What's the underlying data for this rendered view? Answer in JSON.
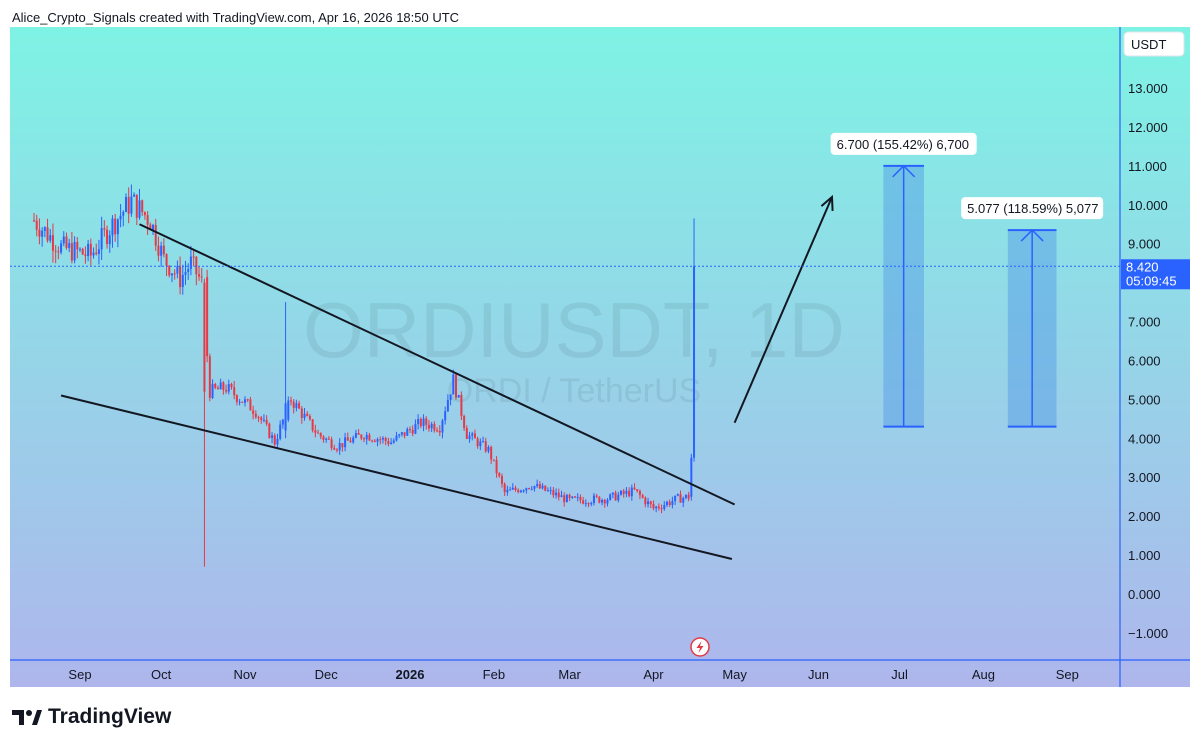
{
  "header": {
    "attribution": "Alice_Crypto_Signals created with TradingView.com, Apr 16, 2026 18:50 UTC"
  },
  "watermark": {
    "symbol": "ORDIUSDT, 1D",
    "description": "ORDI / TetherUS"
  },
  "footer": {
    "brand": "TradingView",
    "logo_icon": "tradingview-logo-icon"
  },
  "colors": {
    "bg_top": "#7ef3e4",
    "bg_bottom": "#aeb6ec",
    "axis_line": "#2962ff",
    "up_candle": "#2962ff",
    "down_candle": "#e53946",
    "trendline": "#131722",
    "target_box": "#4f96e6",
    "price_label_bg": "#2962ff"
  },
  "price_axis": {
    "currency": "USDT",
    "current_price": "8.420",
    "countdown": "05:09:45"
  },
  "annotations": {
    "target1": "6.700 (155.42%) 6,700",
    "target2": "5.077 (118.59%) 5,077"
  },
  "chart_data": {
    "type": "candlestick",
    "title": "ORDIUSDT, 1D",
    "subtitle": "ORDI / TetherUS",
    "ylim": [
      -1.7,
      14.0
    ],
    "yticks": [
      -1,
      0,
      1,
      2,
      3,
      4,
      5,
      6,
      7,
      8,
      9,
      10,
      11,
      12,
      13
    ],
    "ytick_labels": [
      "−1.000",
      "0.000",
      "1.000",
      "2.000",
      "3.000",
      "4.000",
      "5.000",
      "6.000",
      "7.000",
      "8.000",
      "9.000",
      "10.000",
      "11.000",
      "12.000",
      "13.000"
    ],
    "xticks": [
      "Sep",
      "Oct",
      "Nov",
      "Dec",
      "2026",
      "Feb",
      "Mar",
      "Apr",
      "May",
      "Jun",
      "Jul",
      "Aug",
      "Sep"
    ],
    "x_start": "2025-08-15",
    "x_end": "2026-09-30",
    "xtick_dates": [
      "2025-09-01",
      "2025-10-01",
      "2025-11-01",
      "2025-12-01",
      "2026-01-01",
      "2026-02-01",
      "2026-03-01",
      "2026-04-01",
      "2026-05-01",
      "2026-06-01",
      "2026-07-01",
      "2026-08-01",
      "2026-09-01"
    ],
    "anchors": [
      {
        "date": "2025-08-15",
        "price": 9.6
      },
      {
        "date": "2025-08-25",
        "price": 8.9
      },
      {
        "date": "2025-09-05",
        "price": 8.7
      },
      {
        "date": "2025-09-12",
        "price": 9.4
      },
      {
        "date": "2025-09-20",
        "price": 10.1
      },
      {
        "date": "2025-09-27",
        "price": 9.6
      },
      {
        "date": "2025-10-02",
        "price": 8.6
      },
      {
        "date": "2025-10-08",
        "price": 8.1
      },
      {
        "date": "2025-10-12",
        "price": 8.5
      },
      {
        "date": "2025-10-16",
        "price": 8.0
      },
      {
        "date": "2025-10-19",
        "price": 5.2
      },
      {
        "date": "2025-10-25",
        "price": 5.3
      },
      {
        "date": "2025-11-05",
        "price": 4.7
      },
      {
        "date": "2025-11-12",
        "price": 3.9
      },
      {
        "date": "2025-11-18",
        "price": 5.0
      },
      {
        "date": "2025-11-28",
        "price": 4.1
      },
      {
        "date": "2025-12-05",
        "price": 3.8
      },
      {
        "date": "2025-12-15",
        "price": 4.1
      },
      {
        "date": "2025-12-25",
        "price": 3.9
      },
      {
        "date": "2026-01-05",
        "price": 4.4
      },
      {
        "date": "2026-01-12",
        "price": 4.3
      },
      {
        "date": "2026-01-17",
        "price": 5.5
      },
      {
        "date": "2026-01-22",
        "price": 4.1
      },
      {
        "date": "2026-01-30",
        "price": 3.7
      },
      {
        "date": "2026-02-05",
        "price": 2.6
      },
      {
        "date": "2026-02-15",
        "price": 2.8
      },
      {
        "date": "2026-03-01",
        "price": 2.4
      },
      {
        "date": "2026-03-15",
        "price": 2.45
      },
      {
        "date": "2026-03-25",
        "price": 2.65
      },
      {
        "date": "2026-04-01",
        "price": 2.2
      },
      {
        "date": "2026-04-10",
        "price": 2.45
      },
      {
        "date": "2026-04-14",
        "price": 2.5
      }
    ],
    "spike_candles": [
      {
        "date": "2025-10-17",
        "open": 8.0,
        "high": 8.1,
        "low": 0.7,
        "close": 5.2
      },
      {
        "date": "2025-11-16",
        "open": 4.2,
        "high": 7.5,
        "low": 4.0,
        "close": 4.9
      },
      {
        "date": "2026-04-15",
        "open": 2.5,
        "high": 3.6,
        "low": 2.4,
        "close": 3.5
      },
      {
        "date": "2026-04-16",
        "open": 3.5,
        "high": 9.65,
        "low": 3.4,
        "close": 8.42
      }
    ],
    "trendlines": [
      {
        "name": "upper-wedge",
        "from": {
          "date": "2025-09-23",
          "price": 9.5
        },
        "to": {
          "date": "2026-05-01",
          "price": 2.3
        }
      },
      {
        "name": "lower-wedge",
        "from": {
          "date": "2025-08-25",
          "price": 5.1
        },
        "to": {
          "date": "2026-04-30",
          "price": 0.9
        }
      }
    ],
    "arrow": {
      "from": {
        "date": "2026-05-01",
        "price": 4.4
      },
      "to": {
        "date": "2026-06-06",
        "price": 10.2
      }
    },
    "target_ranges": [
      {
        "start": "2026-06-25",
        "end": "2026-07-10",
        "low": 4.3,
        "high": 11.0
      },
      {
        "start": "2026-08-10",
        "end": "2026-08-28",
        "low": 4.3,
        "high": 9.35
      }
    ],
    "last_price": 8.42
  }
}
